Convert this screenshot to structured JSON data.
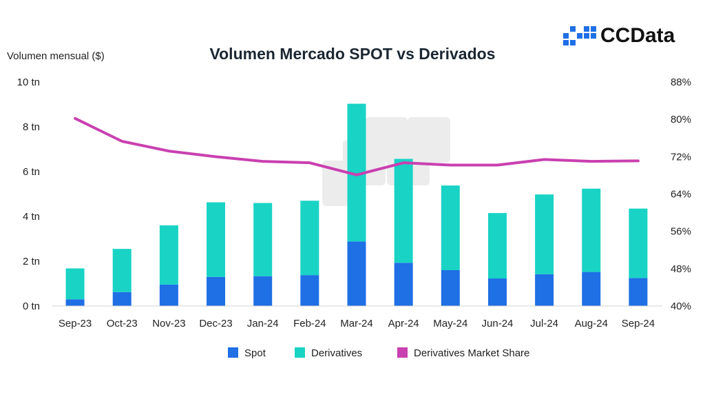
{
  "brand": {
    "name": "CCData"
  },
  "colors": {
    "spot": "#1f6fe5",
    "derivatives": "#19d3c5",
    "share": "#c940b0"
  },
  "chart_data": {
    "type": "bar",
    "stacked": true,
    "title": "Volumen Mercado SPOT vs Derivados",
    "ylabel": "Volumen mensual ($)",
    "categories": [
      "Sep-23",
      "Oct-23",
      "Nov-23",
      "Dec-23",
      "Jan-24",
      "Feb-24",
      "Mar-24",
      "Apr-24",
      "May-24",
      "Jun-24",
      "Jul-24",
      "Aug-24",
      "Sep-24"
    ],
    "series": [
      {
        "name": "Spot",
        "axis": "left",
        "values": [
          0.3,
          0.62,
          0.96,
          1.3,
          1.33,
          1.38,
          2.88,
          1.93,
          1.6,
          1.23,
          1.42,
          1.52,
          1.25
        ]
      },
      {
        "name": "Derivatives",
        "axis": "left",
        "values": [
          1.38,
          1.93,
          2.64,
          3.33,
          3.27,
          3.32,
          6.15,
          4.64,
          3.78,
          2.92,
          3.56,
          3.72,
          3.1
        ]
      },
      {
        "name": "Derivatives Market Share",
        "type": "line",
        "axis": "right",
        "values": [
          80.2,
          75.3,
          73.2,
          72.0,
          71.0,
          70.7,
          68.1,
          70.7,
          70.2,
          70.2,
          71.4,
          71.0,
          71.1
        ]
      }
    ],
    "ylim": [
      0,
      10
    ],
    "yticks": [
      "0 tn",
      "2 tn",
      "4 tn",
      "6 tn",
      "8 tn",
      "10 tn"
    ],
    "y2lim": [
      40,
      88
    ],
    "y2ticks": [
      "40%",
      "48%",
      "56%",
      "64%",
      "72%",
      "80%",
      "88%"
    ],
    "legend": [
      "Spot",
      "Derivatives",
      "Derivatives Market Share"
    ],
    "legend_position": "bottom-center",
    "grid": false
  }
}
